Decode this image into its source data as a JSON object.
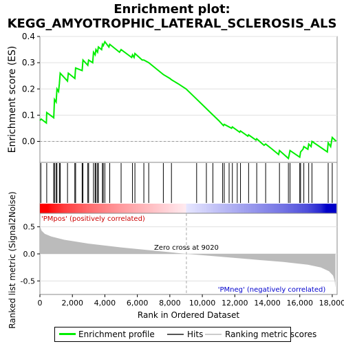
{
  "title_line1": "Enrichment plot:",
  "title_line2": "KEGG_AMYOTROPHIC_LATERAL_SCLEROSIS_ALS",
  "colors": {
    "es_line": "#00ee00",
    "hits": "#000000",
    "metric_fill": "#bbbbbb",
    "pos_label": "#cc0000",
    "neg_label": "#0000cc",
    "grid": "#e0e0e0"
  },
  "legend": {
    "enrichment_profile": "Enrichment profile",
    "hits": "Hits",
    "ranking_metric_scores": "Ranking metric scores"
  },
  "chart_data": {
    "type": "line",
    "xlabel": "Rank in Ordered Dataset",
    "xlim": [
      0,
      18300
    ],
    "x_ticks": [
      0,
      2000,
      4000,
      6000,
      8000,
      10000,
      12000,
      14000,
      16000,
      18000
    ],
    "x_tick_labels": [
      "0",
      "2,000",
      "4,000",
      "6,000",
      "8,000",
      "10,000",
      "12,000",
      "14,000",
      "16,000",
      "18,000"
    ],
    "es_panel": {
      "ylabel": "Enrichment score (ES)",
      "ylim": [
        -0.08,
        0.4
      ],
      "y_ticks": [
        0.0,
        0.1,
        0.2,
        0.3,
        0.4
      ],
      "y_tick_labels": [
        "0.0",
        "0.1",
        "0.2",
        "0.3",
        "0.4"
      ],
      "series": [
        {
          "name": "Enrichment profile",
          "x": [
            0,
            80,
            400,
            420,
            850,
            900,
            1000,
            1050,
            1150,
            1200,
            1250,
            1700,
            1750,
            2150,
            2200,
            2600,
            2650,
            2950,
            3000,
            3250,
            3300,
            3400,
            3450,
            3550,
            3600,
            3800,
            3850,
            3900,
            4000,
            4250,
            4300,
            4900,
            5000,
            5650,
            5700,
            5800,
            5850,
            6300,
            6400,
            6700,
            7500,
            7600,
            8000,
            8100,
            8500,
            9000,
            9500,
            10000,
            10500,
            11000,
            11300,
            11350,
            11800,
            11850,
            12300,
            12350,
            12800,
            12850,
            13300,
            13350,
            13800,
            13900,
            14300,
            14700,
            14750,
            15300,
            15350,
            15400,
            16000,
            16050,
            16200,
            16250,
            16500,
            16550,
            16700,
            16750,
            17700,
            17750,
            17900,
            18000,
            18250
          ],
          "y": [
            0.08,
            0.085,
            0.07,
            0.11,
            0.09,
            0.16,
            0.15,
            0.2,
            0.19,
            0.22,
            0.26,
            0.23,
            0.26,
            0.24,
            0.28,
            0.27,
            0.31,
            0.29,
            0.31,
            0.3,
            0.34,
            0.33,
            0.35,
            0.34,
            0.36,
            0.35,
            0.37,
            0.365,
            0.38,
            0.36,
            0.37,
            0.34,
            0.35,
            0.32,
            0.33,
            0.32,
            0.335,
            0.31,
            0.31,
            0.3,
            0.26,
            0.255,
            0.24,
            0.235,
            0.22,
            0.2,
            0.17,
            0.14,
            0.11,
            0.08,
            0.06,
            0.065,
            0.05,
            0.055,
            0.035,
            0.04,
            0.02,
            0.025,
            0.005,
            0.01,
            -0.015,
            -0.01,
            -0.03,
            -0.05,
            -0.035,
            -0.065,
            -0.05,
            -0.035,
            -0.06,
            -0.04,
            -0.03,
            -0.02,
            -0.03,
            -0.01,
            -0.02,
            0.0,
            -0.04,
            -0.005,
            -0.02,
            0.015,
            0.0
          ]
        }
      ]
    },
    "hits_panel": {
      "name": "Hits",
      "hit_ranks": [
        60,
        420,
        850,
        900,
        1000,
        1050,
        1200,
        1250,
        1700,
        2150,
        2200,
        2600,
        2650,
        2950,
        3000,
        3300,
        3400,
        3450,
        3550,
        3600,
        3850,
        3900,
        4000,
        4300,
        5000,
        5700,
        5850,
        6400,
        6700,
        7600,
        8100,
        9650,
        10250,
        10650,
        11250,
        11350,
        11650,
        11850,
        12150,
        12350,
        12850,
        13350,
        13900,
        14750,
        15300,
        15400,
        16000,
        16050,
        16250,
        16550,
        16750,
        17750,
        18000
      ]
    },
    "metric_panel": {
      "name": "Ranking metric scores",
      "ylabel": "Ranked list metric (Signal2Noise)",
      "ylim": [
        -0.75,
        0.75
      ],
      "y_ticks": [
        -0.5,
        0.0,
        0.5
      ],
      "y_tick_labels": [
        "-0.5",
        "0.0",
        "0.5"
      ],
      "x": [
        0,
        20,
        100,
        300,
        700,
        1500,
        3000,
        5000,
        7000,
        9020,
        11000,
        13000,
        15000,
        16500,
        17300,
        17800,
        18050,
        18150,
        18200
      ],
      "y": [
        0.63,
        0.5,
        0.43,
        0.37,
        0.32,
        0.26,
        0.19,
        0.12,
        0.06,
        0.0,
        -0.05,
        -0.1,
        -0.15,
        -0.2,
        -0.25,
        -0.32,
        -0.4,
        -0.5,
        -0.63
      ],
      "pos_label": "'PMpos' (positively correlated)",
      "neg_label": "'PMneg' (negatively correlated)",
      "zero_cross_label": "Zero cross at 9020",
      "zero_cross": 9020
    }
  }
}
